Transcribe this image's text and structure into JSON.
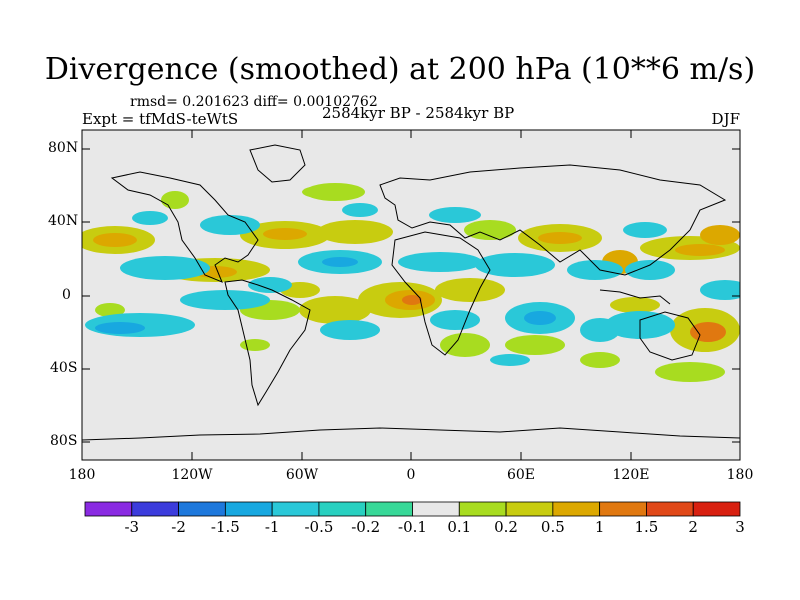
{
  "title": "Divergence (smoothed) at 200 hPa (10**6 m/s)",
  "stats_text": "rmsd= 0.201623 diff= 0.00102762",
  "experiment_text": "Expt = tfMdS-teWtS",
  "period_text": "2584kyr BP - 2584kyr BP",
  "season_text": "DJF",
  "lat_labels": [
    "80N",
    "40N",
    "0",
    "40S",
    "80S"
  ],
  "lon_labels": [
    "180",
    "120W",
    "60W",
    "0",
    "60E",
    "120E",
    "180"
  ],
  "colorbar": {
    "labels": [
      "-3",
      "-2",
      "-1.5",
      "-1",
      "-0.5",
      "-0.2",
      "-0.1",
      "0.1",
      "0.2",
      "0.5",
      "1",
      "1.5",
      "2",
      "3"
    ],
    "colors": [
      "#8a2be2",
      "#3c3cdc",
      "#1e78dc",
      "#18a8e0",
      "#2ac8d8",
      "#28d0c0",
      "#38d898",
      "#e8e8e8",
      "#a8dc20",
      "#c8cc10",
      "#dca800",
      "#e07810",
      "#e04818",
      "#d82010"
    ]
  },
  "background_color": "#e8e8e8"
}
